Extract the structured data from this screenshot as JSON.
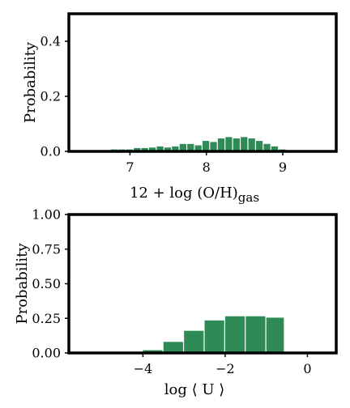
{
  "chart_data": [
    {
      "type": "bar",
      "xlabel": "12 + log (O/H)",
      "xlabel_sub": "gas",
      "ylabel": "Probability",
      "xlim": [
        6.2,
        9.7
      ],
      "ylim": [
        0,
        0.5
      ],
      "xticks": [
        7,
        8,
        9
      ],
      "yticks": [
        0.0,
        0.2,
        0.4
      ],
      "ytick_labels": [
        "0.0",
        "0.2",
        "0.4"
      ],
      "color": "#2e8b57",
      "grid": false,
      "bins": [
        {
          "x0": 6.75,
          "x1": 6.85,
          "value": 0.007
        },
        {
          "x0": 6.85,
          "x1": 6.95,
          "value": 0.007
        },
        {
          "x0": 6.95,
          "x1": 7.05,
          "value": 0.007
        },
        {
          "x0": 7.05,
          "x1": 7.15,
          "value": 0.012
        },
        {
          "x0": 7.15,
          "x1": 7.25,
          "value": 0.012
        },
        {
          "x0": 7.25,
          "x1": 7.35,
          "value": 0.014
        },
        {
          "x0": 7.35,
          "x1": 7.45,
          "value": 0.018
        },
        {
          "x0": 7.45,
          "x1": 7.55,
          "value": 0.014
        },
        {
          "x0": 7.55,
          "x1": 7.65,
          "value": 0.018
        },
        {
          "x0": 7.65,
          "x1": 7.75,
          "value": 0.027
        },
        {
          "x0": 7.75,
          "x1": 7.85,
          "value": 0.027
        },
        {
          "x0": 7.85,
          "x1": 7.95,
          "value": 0.022
        },
        {
          "x0": 7.95,
          "x1": 8.05,
          "value": 0.038
        },
        {
          "x0": 8.05,
          "x1": 8.15,
          "value": 0.034
        },
        {
          "x0": 8.15,
          "x1": 8.25,
          "value": 0.047
        },
        {
          "x0": 8.25,
          "x1": 8.35,
          "value": 0.052
        },
        {
          "x0": 8.35,
          "x1": 8.45,
          "value": 0.047
        },
        {
          "x0": 8.45,
          "x1": 8.55,
          "value": 0.052
        },
        {
          "x0": 8.55,
          "x1": 8.65,
          "value": 0.047
        },
        {
          "x0": 8.65,
          "x1": 8.75,
          "value": 0.038
        },
        {
          "x0": 8.75,
          "x1": 8.85,
          "value": 0.027
        },
        {
          "x0": 8.85,
          "x1": 8.95,
          "value": 0.018
        },
        {
          "x0": 8.95,
          "x1": 9.05,
          "value": 0.007
        }
      ]
    },
    {
      "type": "bar",
      "xlabel": "log ⟨ U ⟩",
      "ylabel": "Probability",
      "xlim": [
        -5.8,
        0.7
      ],
      "ylim": [
        0,
        1.0
      ],
      "xticks": [
        -4,
        -2,
        0
      ],
      "xtick_labels": [
        "−4",
        "−2",
        "0"
      ],
      "yticks": [
        0.0,
        0.25,
        0.5,
        0.75,
        1.0
      ],
      "ytick_labels": [
        "0.00",
        "0.25",
        "0.50",
        "0.75",
        "1.00"
      ],
      "color": "#2e8b57",
      "grid": false,
      "bins": [
        {
          "x0": -4.0,
          "x1": -3.5,
          "value": 0.02
        },
        {
          "x0": -3.5,
          "x1": -3.0,
          "value": 0.08
        },
        {
          "x0": -3.0,
          "x1": -2.5,
          "value": 0.16
        },
        {
          "x0": -2.5,
          "x1": -2.0,
          "value": 0.235
        },
        {
          "x0": -2.0,
          "x1": -1.5,
          "value": 0.265
        },
        {
          "x0": -1.5,
          "x1": -1.0,
          "value": 0.265
        },
        {
          "x0": -1.0,
          "x1": -0.55,
          "value": 0.255
        }
      ]
    }
  ]
}
